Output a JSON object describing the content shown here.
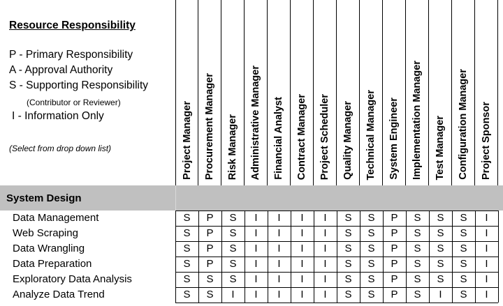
{
  "legend": {
    "title": "Resource Responsibility",
    "lines": [
      "P - Primary Responsibility",
      "A - Approval Authority",
      "S - Supporting Responsibility",
      "I - Information Only"
    ],
    "note": "(Contributor or Reviewer)",
    "select_hint": "(Select from drop down list)"
  },
  "roles": [
    "Project Manager",
    "Procurement Manager",
    "Risk Manager",
    "Administrative Manager",
    "Financial Analyst",
    "Contract Manager",
    "Project Scheduler",
    "Quality Manager",
    "Technical Manager",
    "System Engineer",
    "Implementation Manager",
    "Test Manager",
    "Configuration Manager",
    "Project Sponsor"
  ],
  "section": {
    "title": "System Design",
    "tasks": [
      {
        "name": "Data Management",
        "values": [
          "S",
          "P",
          "S",
          "I",
          "I",
          "I",
          "I",
          "S",
          "S",
          "P",
          "S",
          "S",
          "S",
          "I"
        ]
      },
      {
        "name": "Web Scraping",
        "values": [
          "S",
          "P",
          "S",
          "I",
          "I",
          "I",
          "I",
          "S",
          "S",
          "P",
          "S",
          "S",
          "S",
          "I"
        ]
      },
      {
        "name": "Data Wrangling",
        "values": [
          "S",
          "P",
          "S",
          "I",
          "I",
          "I",
          "I",
          "S",
          "S",
          "P",
          "S",
          "S",
          "S",
          "I"
        ]
      },
      {
        "name": "Data Preparation",
        "values": [
          "S",
          "P",
          "S",
          "I",
          "I",
          "I",
          "I",
          "S",
          "S",
          "P",
          "S",
          "S",
          "S",
          "I"
        ]
      },
      {
        "name": "Exploratory Data Analysis",
        "values": [
          "S",
          "S",
          "S",
          "I",
          "I",
          "I",
          "I",
          "S",
          "S",
          "P",
          "S",
          "S",
          "S",
          "I"
        ]
      },
      {
        "name": "Analyze Data Trend",
        "values": [
          "S",
          "S",
          "I",
          "I",
          "I",
          "I",
          "I",
          "S",
          "S",
          "P",
          "S",
          "I",
          "S",
          "I"
        ]
      }
    ]
  }
}
